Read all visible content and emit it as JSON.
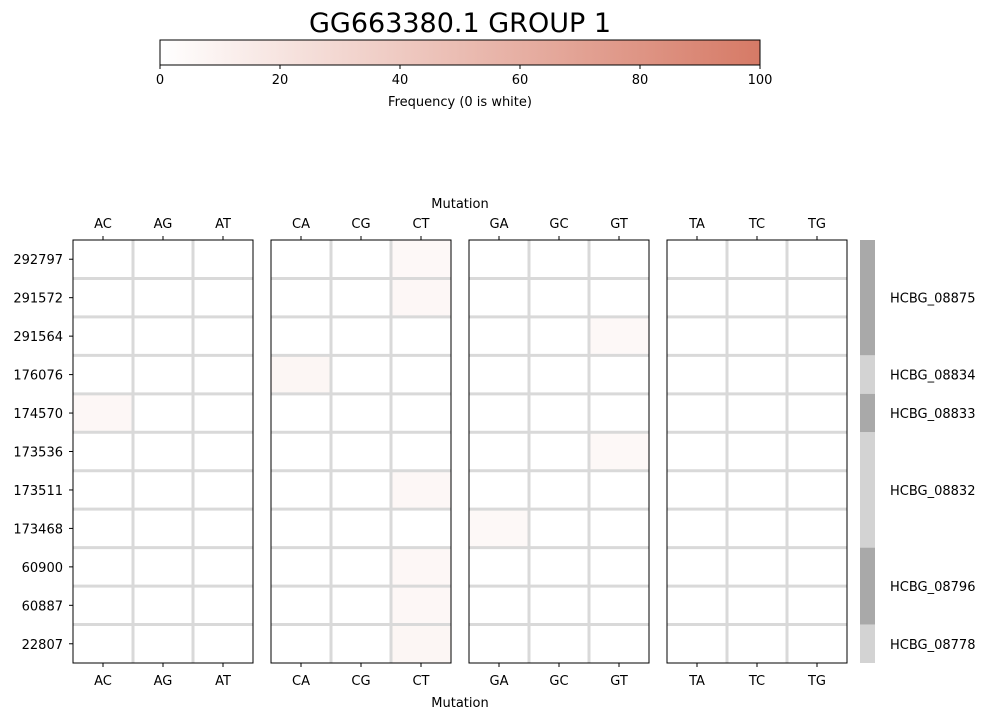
{
  "chart_data": {
    "type": "heatmap",
    "title": "GG663380.1 GROUP 1",
    "colorbar": {
      "label": "Frequency (0 is white)",
      "ticks": [
        0,
        20,
        40,
        60,
        80,
        100
      ],
      "range": [
        0,
        100
      ],
      "color_low": "#ffffff",
      "color_high": "#d67a66"
    },
    "xlabel_top": "Mutation",
    "xlabel_bottom": "Mutation",
    "panels": [
      {
        "columns": [
          "AC",
          "AG",
          "AT"
        ]
      },
      {
        "columns": [
          "CA",
          "CG",
          "CT"
        ]
      },
      {
        "columns": [
          "GA",
          "GC",
          "GT"
        ]
      },
      {
        "columns": [
          "TA",
          "TC",
          "TG"
        ]
      }
    ],
    "rows": [
      "292797",
      "291572",
      "291564",
      "176076",
      "174570",
      "173536",
      "173511",
      "173468",
      "60900",
      "60887",
      "22807"
    ],
    "cells": [
      {
        "row": "292797",
        "col": "CT",
        "value": 5
      },
      {
        "row": "291572",
        "col": "CT",
        "value": 6
      },
      {
        "row": "291564",
        "col": "GT",
        "value": 5
      },
      {
        "row": "176076",
        "col": "CA",
        "value": 7
      },
      {
        "row": "174570",
        "col": "AC",
        "value": 6
      },
      {
        "row": "173536",
        "col": "GT",
        "value": 5
      },
      {
        "row": "173511",
        "col": "CT",
        "value": 6
      },
      {
        "row": "173468",
        "col": "GA",
        "value": 5
      },
      {
        "row": "60900",
        "col": "CT",
        "value": 6
      },
      {
        "row": "60887",
        "col": "CT",
        "value": 6
      },
      {
        "row": "22807",
        "col": "CT",
        "value": 7
      }
    ],
    "gene_groups": [
      {
        "label": "HCBG_08875",
        "rows": 3,
        "shade": "#a9a9a9"
      },
      {
        "label": "HCBG_08834",
        "rows": 1,
        "shade": "#d3d3d3"
      },
      {
        "label": "HCBG_08833",
        "rows": 1,
        "shade": "#a9a9a9"
      },
      {
        "label": "HCBG_08832",
        "rows": 3,
        "shade": "#d3d3d3"
      },
      {
        "label": "HCBG_08796",
        "rows": 2,
        "shade": "#a9a9a9"
      },
      {
        "label": "HCBG_08778",
        "rows": 1,
        "shade": "#d3d3d3"
      }
    ],
    "grid": true
  }
}
